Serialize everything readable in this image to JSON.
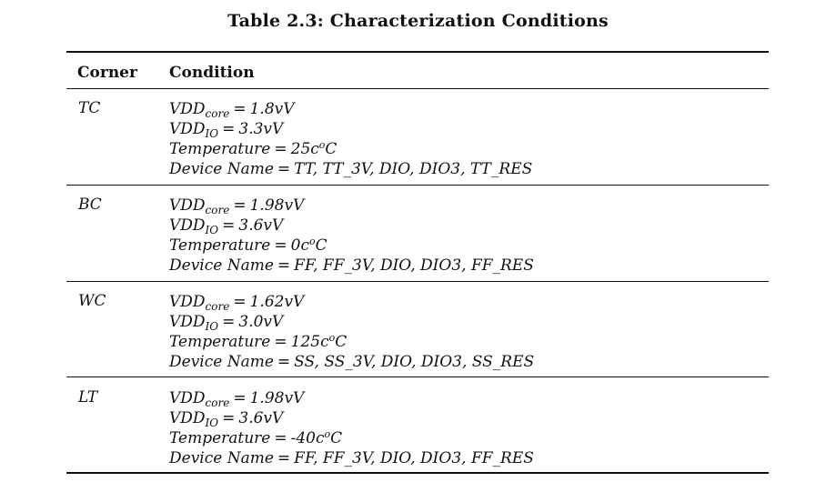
{
  "table": {
    "caption": "Table 2.3: Characterization Conditions",
    "headers": {
      "corner": "Corner",
      "condition": "Condition"
    },
    "rows": [
      {
        "corner": "TC",
        "vdd_core_label": "VDD",
        "vdd_core_sub": "core",
        "vdd_core_value": "1.8vV",
        "vdd_io_label": "VDD",
        "vdd_io_sub": "IO",
        "vdd_io_value": "3.3vV",
        "temp_label": "Temperature",
        "temp_value": "25c",
        "temp_sup": "o",
        "temp_unit": "C",
        "device_label": "Device Name",
        "device_value": "TT, TT_3V, DIO, DIO3, TT_RES"
      },
      {
        "corner": "BC",
        "vdd_core_label": "VDD",
        "vdd_core_sub": "core",
        "vdd_core_value": "1.98vV",
        "vdd_io_label": "VDD",
        "vdd_io_sub": "IO",
        "vdd_io_value": "3.6vV",
        "temp_label": "Temperature",
        "temp_value": "0c",
        "temp_sup": "o",
        "temp_unit": "C",
        "device_label": "Device Name",
        "device_value": "FF, FF_3V, DIO, DIO3, FF_RES"
      },
      {
        "corner": "WC",
        "vdd_core_label": "VDD",
        "vdd_core_sub": "core",
        "vdd_core_value": "1.62vV",
        "vdd_io_label": "VDD",
        "vdd_io_sub": "IO",
        "vdd_io_value": "3.0vV",
        "temp_label": "Temperature",
        "temp_value": "125c",
        "temp_sup": "o",
        "temp_unit": "C",
        "device_label": "Device Name",
        "device_value": "SS, SS_3V, DIO, DIO3, SS_RES"
      },
      {
        "corner": "LT",
        "vdd_core_label": "VDD",
        "vdd_core_sub": "core",
        "vdd_core_value": "1.98vV",
        "vdd_io_label": "VDD",
        "vdd_io_sub": "IO",
        "vdd_io_value": "3.6vV",
        "temp_label": "Temperature",
        "temp_value": "-40c",
        "temp_sup": "o",
        "temp_unit": "C",
        "device_label": "Device Name",
        "device_value": "FF, FF_3V, DIO, DIO3, FF_RES"
      }
    ],
    "equals_sign": "="
  }
}
